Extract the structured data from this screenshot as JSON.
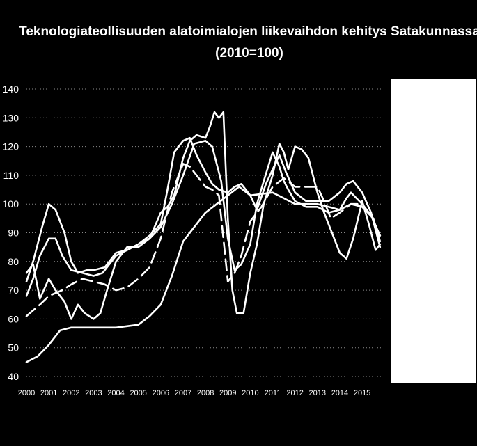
{
  "chart_data": {
    "type": "line",
    "title": "Teknologiateollisuuden alatoimialojen liikevaihdon kehitys Satakunnassa",
    "subtitle": "(2010=100)",
    "xlabel": "",
    "ylabel": "",
    "xlim": [
      2000,
      2015.9
    ],
    "ylim": [
      40,
      140
    ],
    "ytick_step": 10,
    "y_ticks": [
      "40",
      "50",
      "60",
      "70",
      "80",
      "90",
      "100",
      "110",
      "120",
      "130",
      "140"
    ],
    "x_ticks": [
      "2000",
      "2001",
      "2002",
      "2003",
      "2004",
      "2005",
      "2006",
      "2007",
      "2008",
      "2009",
      "2010",
      "2011",
      "2012",
      "2013",
      "2014",
      "2015"
    ],
    "grid": true,
    "legend": "right (entries not legible)",
    "line_color": "#ffffff",
    "series": [
      {
        "dash": "solid",
        "x": [
          2000,
          2000.5,
          2001,
          2001.5,
          2002,
          2003,
          2004,
          2005,
          2005.5,
          2006,
          2006.5,
          2007,
          2007.5,
          2008,
          2008.5,
          2009,
          2009.5,
          2010,
          2011,
          2011.5,
          2012,
          2013,
          2013.5,
          2014,
          2014.5,
          2015,
          2015.5,
          2015.8
        ],
        "y": [
          45,
          47,
          51,
          56,
          57,
          57,
          57,
          58,
          61,
          65,
          75,
          87,
          92,
          97,
          100,
          103,
          106,
          103,
          104,
          102,
          100,
          100,
          99,
          98,
          100,
          99,
          95,
          87
        ]
      },
      {
        "dash": "solid",
        "x": [
          2000,
          2000.3,
          2000.6,
          2001,
          2001.3,
          2001.6,
          2002,
          2002.5,
          2003,
          2003.4,
          2004,
          2004.5,
          2005,
          2005.5,
          2006,
          2006.5,
          2007,
          2007.5,
          2008,
          2008.3,
          2008.7,
          2009,
          2009.3,
          2009.6,
          2010,
          2010.3,
          2010.6,
          2011,
          2011.3,
          2011.5,
          2011.7,
          2012,
          2012.5,
          2013,
          2013.5,
          2014,
          2014.3,
          2014.5,
          2015,
          2015.4,
          2015.8
        ],
        "y": [
          68,
          74,
          82,
          88,
          88,
          82,
          77,
          76,
          75,
          76,
          82,
          84,
          86,
          88,
          92,
          100,
          110,
          121,
          122,
          120,
          108,
          88,
          77,
          79,
          86,
          100,
          108,
          118,
          113,
          108,
          105,
          101,
          99,
          99,
          97,
          98,
          102,
          104,
          100,
          96,
          89
        ]
      },
      {
        "dash": "solid",
        "x": [
          2000,
          2000.3,
          2000.7,
          2001,
          2001.3,
          2001.7,
          2002,
          2002.3,
          2002.7,
          2003,
          2003.5,
          2004,
          2004.5,
          2005,
          2005.5,
          2006,
          2006.3,
          2006.6,
          2007,
          2007.3,
          2007.6,
          2008,
          2008.3,
          2008.6,
          2009,
          2009.3,
          2009.6,
          2010,
          2010.3,
          2010.7,
          2011,
          2011.3,
          2011.6,
          2012,
          2012.5,
          2013,
          2013.5,
          2014,
          2014.3,
          2014.6,
          2015,
          2015.4,
          2015.8
        ],
        "y": [
          73,
          80,
          92,
          100,
          98,
          90,
          80,
          76,
          77,
          77,
          78,
          83,
          84,
          86,
          89,
          93,
          105,
          118,
          122,
          123,
          117,
          111,
          107,
          105,
          104,
          106,
          107,
          103,
          98,
          107,
          112,
          117,
          111,
          104,
          101,
          101,
          101,
          104,
          107,
          108,
          104,
          97,
          85
        ]
      },
      {
        "dash": "solid",
        "x": [
          2000,
          2000.3,
          2000.6,
          2001,
          2001.3,
          2001.7,
          2002,
          2002.3,
          2002.6,
          2003,
          2003.3,
          2003.6,
          2004,
          2004.5,
          2005,
          2005.5,
          2006,
          2006.3,
          2006.6,
          2007,
          2007.3,
          2007.6,
          2008,
          2008.2,
          2008.4,
          2008.6,
          2008.8,
          2009,
          2009.2,
          2009.4,
          2009.7,
          2010,
          2010.3,
          2010.6,
          2011,
          2011.3,
          2011.5,
          2011.7,
          2012,
          2012.3,
          2012.6,
          2013,
          2013.3,
          2013.6,
          2014,
          2014.3,
          2014.6,
          2015,
          2015.3,
          2015.6,
          2015.8
        ],
        "y": [
          76,
          79,
          67,
          74,
          70,
          66,
          60,
          65,
          62,
          60,
          62,
          70,
          80,
          85,
          85,
          88,
          97,
          99,
          103,
          116,
          122,
          124,
          123,
          127,
          132,
          130,
          132,
          95,
          70,
          62,
          62,
          76,
          86,
          100,
          110,
          121,
          118,
          112,
          120,
          119,
          116,
          104,
          97,
          91,
          83,
          81,
          88,
          101,
          93,
          84,
          86
        ]
      },
      {
        "dash": "dashed",
        "x": [
          2000,
          2000.3,
          2000.6,
          2001,
          2001.3,
          2001.6,
          2002,
          2002.5,
          2003,
          2003.5,
          2004,
          2004.5,
          2005,
          2005.5,
          2006,
          2006.5,
          2007,
          2007.3,
          2007.6,
          2008,
          2008.3,
          2008.6,
          2008.8,
          2009,
          2009.3,
          2009.6,
          2010,
          2010.5,
          2011,
          2011.5,
          2012,
          2012.5,
          2013,
          2013.3,
          2013.6,
          2014,
          2014.5,
          2015,
          2015.4,
          2015.8
        ],
        "y": [
          61,
          63,
          65,
          68,
          69,
          70,
          72,
          74,
          73,
          72,
          70,
          71,
          74,
          78,
          88,
          104,
          114,
          113,
          110,
          106,
          105,
          103,
          88,
          73,
          76,
          82,
          94,
          99,
          106,
          109,
          106,
          106,
          106,
          101,
          95,
          97,
          100,
          100,
          96,
          89
        ]
      }
    ]
  }
}
